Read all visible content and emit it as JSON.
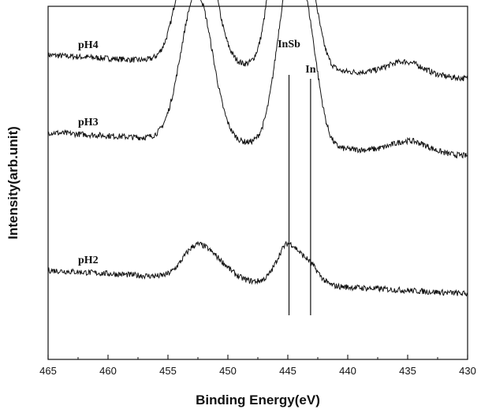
{
  "chart_data": {
    "type": "line",
    "xlabel": "Binding Energy(eV)",
    "ylabel": "Intensity(arb.unit)",
    "xlim": [
      465,
      430
    ],
    "x_reversed": true,
    "x_ticks": [
      "465",
      "460",
      "455",
      "450",
      "445",
      "440",
      "435",
      "430"
    ],
    "y_ticks_shown": false,
    "grid": false,
    "legend": "none",
    "series": [
      {
        "name": "pH4",
        "baseline": 0.62,
        "peaks": [
          {
            "center": 452.6,
            "height": 0.95,
            "width": 1.3
          },
          {
            "center": 445.0,
            "height": 1.45,
            "width": 1.1
          },
          {
            "center": 443.2,
            "height": 0.32,
            "width": 0.9
          },
          {
            "center": 435.2,
            "height": 0.08,
            "width": 1.5
          }
        ]
      },
      {
        "name": "pH3",
        "baseline": 0.16,
        "peaks": [
          {
            "center": 452.6,
            "height": 0.88,
            "width": 1.3
          },
          {
            "center": 444.8,
            "height": 0.98,
            "width": 1.1
          },
          {
            "center": 443.2,
            "height": 0.45,
            "width": 0.9
          },
          {
            "center": 434.8,
            "height": 0.07,
            "width": 1.5
          }
        ]
      },
      {
        "name": "pH2",
        "baseline": -0.66,
        "peaks": [
          {
            "center": 452.7,
            "height": 0.18,
            "width": 1.1
          },
          {
            "center": 450.8,
            "height": 0.09,
            "width": 1.1
          },
          {
            "center": 445.0,
            "height": 0.23,
            "width": 0.9
          },
          {
            "center": 443.2,
            "height": 0.11,
            "width": 0.8
          }
        ]
      }
    ],
    "annotations": [
      {
        "text": "InSb",
        "x": 444.9
      },
      {
        "text": "In",
        "x": 443.1
      }
    ]
  }
}
